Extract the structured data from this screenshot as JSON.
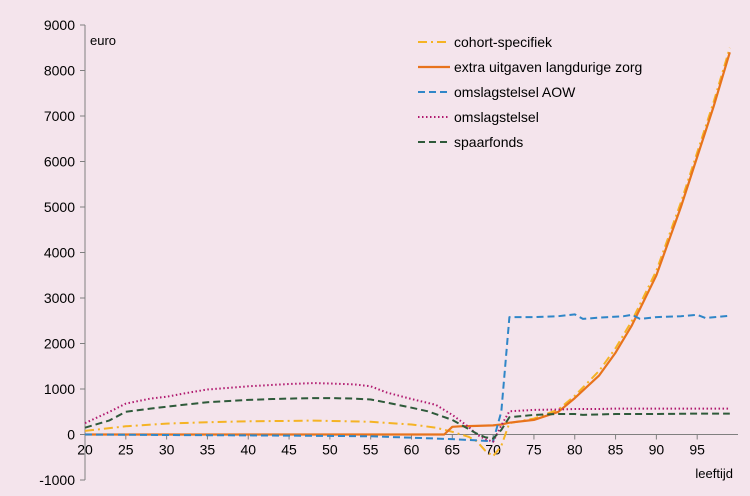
{
  "chart_data": {
    "type": "line",
    "xlabel": "leeftijd",
    "ylabel": "euro",
    "xlim": [
      20,
      100
    ],
    "ylim": [
      -1000,
      9000
    ],
    "x_ticks": [
      20,
      25,
      30,
      35,
      40,
      45,
      50,
      55,
      60,
      65,
      70,
      75,
      80,
      85,
      90,
      95
    ],
    "y_ticks": [
      -1000,
      0,
      1000,
      2000,
      3000,
      4000,
      5000,
      6000,
      7000,
      8000,
      9000
    ],
    "grid": false,
    "legend_position": "top-right",
    "background": "#f4e4ec",
    "series": [
      {
        "name": "cohort-specifiek",
        "color": "#f5b324",
        "style": "dashdot",
        "points": [
          [
            20,
            80
          ],
          [
            25,
            180
          ],
          [
            30,
            240
          ],
          [
            35,
            270
          ],
          [
            40,
            290
          ],
          [
            45,
            300
          ],
          [
            48,
            305
          ],
          [
            50,
            300
          ],
          [
            55,
            280
          ],
          [
            60,
            220
          ],
          [
            63,
            150
          ],
          [
            65,
            60
          ],
          [
            67,
            -50
          ],
          [
            68,
            -150
          ],
          [
            69,
            -350
          ],
          [
            70,
            -480
          ],
          [
            71,
            -250
          ],
          [
            72,
            250
          ],
          [
            75,
            350
          ],
          [
            78,
            550
          ],
          [
            80,
            850
          ],
          [
            83,
            1400
          ],
          [
            85,
            1900
          ],
          [
            87,
            2500
          ],
          [
            90,
            3600
          ],
          [
            93,
            5100
          ],
          [
            95,
            6200
          ],
          [
            97,
            7300
          ],
          [
            99,
            8500
          ]
        ]
      },
      {
        "name": "extra uitgaven langdurige zorg",
        "color": "#e8731c",
        "style": "solid",
        "points": [
          [
            20,
            0
          ],
          [
            30,
            0
          ],
          [
            40,
            0
          ],
          [
            50,
            0
          ],
          [
            60,
            0
          ],
          [
            64,
            0
          ],
          [
            65,
            170
          ],
          [
            66,
            180
          ],
          [
            68,
            190
          ],
          [
            70,
            200
          ],
          [
            71,
            220
          ],
          [
            72,
            260
          ],
          [
            75,
            320
          ],
          [
            78,
            500
          ],
          [
            80,
            800
          ],
          [
            83,
            1300
          ],
          [
            85,
            1800
          ],
          [
            87,
            2400
          ],
          [
            90,
            3500
          ],
          [
            93,
            5000
          ],
          [
            95,
            6100
          ],
          [
            97,
            7200
          ],
          [
            99,
            8400
          ]
        ]
      },
      {
        "name": "omslagstelsel AOW",
        "color": "#2f86c8",
        "style": "dashed",
        "points": [
          [
            20,
            0
          ],
          [
            30,
            -10
          ],
          [
            40,
            -20
          ],
          [
            50,
            -30
          ],
          [
            55,
            -40
          ],
          [
            60,
            -70
          ],
          [
            65,
            -100
          ],
          [
            68,
            -130
          ],
          [
            70,
            -150
          ],
          [
            71,
            500
          ],
          [
            72,
            2580
          ],
          [
            75,
            2580
          ],
          [
            78,
            2600
          ],
          [
            80,
            2640
          ],
          [
            81,
            2540
          ],
          [
            83,
            2570
          ],
          [
            86,
            2600
          ],
          [
            87,
            2630
          ],
          [
            88,
            2540
          ],
          [
            90,
            2580
          ],
          [
            93,
            2600
          ],
          [
            95,
            2630
          ],
          [
            96,
            2560
          ],
          [
            99,
            2610
          ]
        ]
      },
      {
        "name": "omslagstelsel",
        "color": "#b0186e",
        "style": "dotted",
        "points": [
          [
            20,
            250
          ],
          [
            23,
            500
          ],
          [
            25,
            680
          ],
          [
            28,
            790
          ],
          [
            30,
            830
          ],
          [
            33,
            930
          ],
          [
            35,
            990
          ],
          [
            38,
            1030
          ],
          [
            40,
            1060
          ],
          [
            43,
            1090
          ],
          [
            45,
            1110
          ],
          [
            48,
            1130
          ],
          [
            50,
            1120
          ],
          [
            53,
            1100
          ],
          [
            55,
            1060
          ],
          [
            57,
            920
          ],
          [
            60,
            780
          ],
          [
            63,
            650
          ],
          [
            65,
            430
          ],
          [
            67,
            170
          ],
          [
            68,
            0
          ],
          [
            69,
            -100
          ],
          [
            70,
            -160
          ],
          [
            71,
            200
          ],
          [
            72,
            510
          ],
          [
            75,
            540
          ],
          [
            78,
            550
          ],
          [
            80,
            560
          ],
          [
            83,
            560
          ],
          [
            85,
            570
          ],
          [
            90,
            570
          ],
          [
            95,
            570
          ],
          [
            99,
            570
          ]
        ]
      },
      {
        "name": "spaarfonds",
        "color": "#2e5a3a",
        "style": "dashed",
        "points": [
          [
            20,
            150
          ],
          [
            23,
            310
          ],
          [
            25,
            500
          ],
          [
            28,
            570
          ],
          [
            30,
            610
          ],
          [
            33,
            670
          ],
          [
            35,
            710
          ],
          [
            38,
            740
          ],
          [
            40,
            760
          ],
          [
            43,
            780
          ],
          [
            45,
            790
          ],
          [
            48,
            800
          ],
          [
            50,
            800
          ],
          [
            53,
            790
          ],
          [
            55,
            770
          ],
          [
            57,
            700
          ],
          [
            60,
            590
          ],
          [
            62,
            510
          ],
          [
            65,
            320
          ],
          [
            67,
            120
          ],
          [
            68,
            20
          ],
          [
            69,
            -60
          ],
          [
            70,
            -90
          ],
          [
            71,
            100
          ],
          [
            72,
            380
          ],
          [
            75,
            430
          ],
          [
            78,
            450
          ],
          [
            80,
            450
          ],
          [
            81,
            430
          ],
          [
            85,
            450
          ],
          [
            90,
            450
          ],
          [
            95,
            460
          ],
          [
            99,
            460
          ]
        ]
      }
    ]
  }
}
